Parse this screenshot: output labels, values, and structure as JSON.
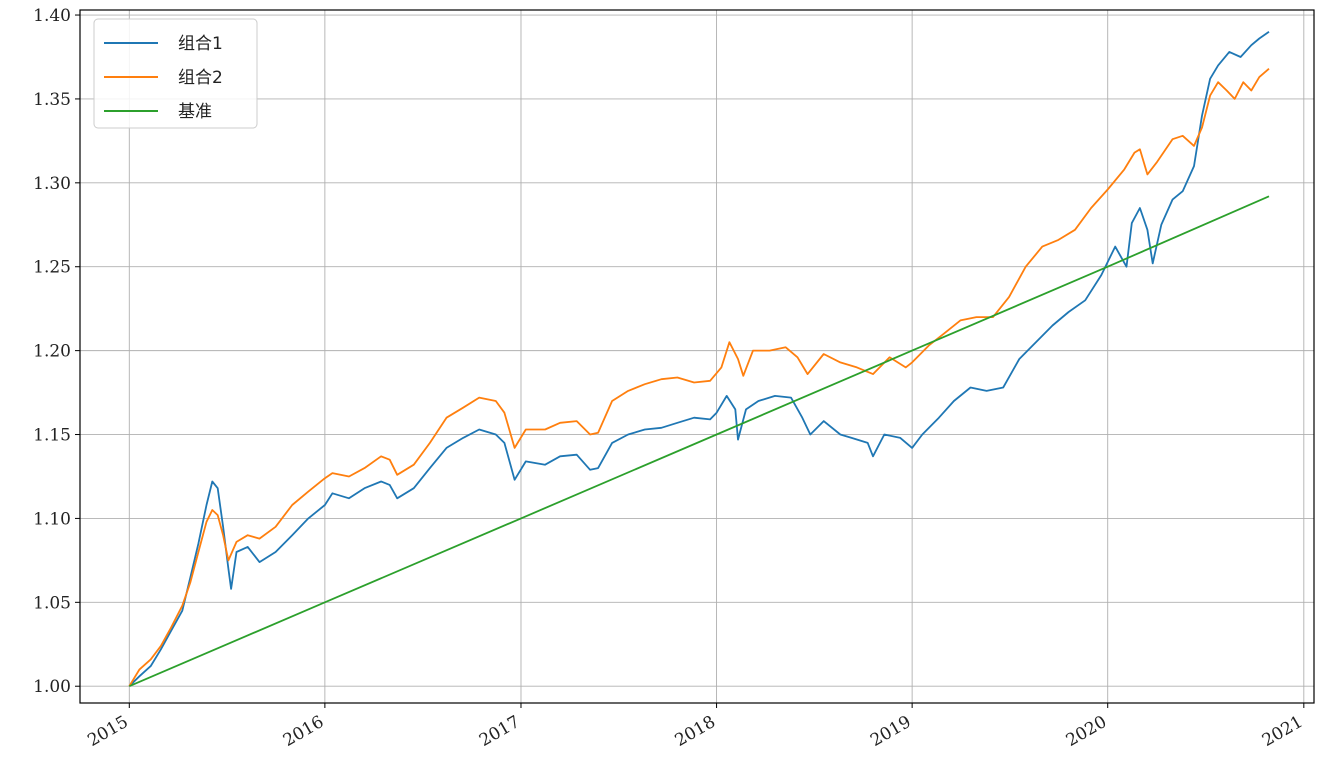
{
  "chart_data": {
    "type": "line",
    "title": "",
    "xlabel": "",
    "ylabel": "",
    "x_ticks": [
      "2015",
      "2016",
      "2017",
      "2018",
      "2019",
      "2020",
      "2021"
    ],
    "y_ticks": [
      "1.00",
      "1.05",
      "1.10",
      "1.15",
      "1.20",
      "1.25",
      "1.30",
      "1.35",
      "1.40"
    ],
    "xlim": [
      "2014-10-01",
      "2021-01-20"
    ],
    "ylim": [
      0.99,
      1.403
    ],
    "grid": true,
    "legend_position": "top-left",
    "series": [
      {
        "name": "组合1",
        "color": "#1f77b4",
        "points": [
          [
            "2015-01-01",
            1.0
          ],
          [
            "2015-01-20",
            1.006
          ],
          [
            "2015-02-10",
            1.012
          ],
          [
            "2015-03-01",
            1.022
          ],
          [
            "2015-03-20",
            1.033
          ],
          [
            "2015-04-10",
            1.045
          ],
          [
            "2015-04-25",
            1.065
          ],
          [
            "2015-05-10",
            1.085
          ],
          [
            "2015-05-25",
            1.108
          ],
          [
            "2015-06-05",
            1.122
          ],
          [
            "2015-06-15",
            1.118
          ],
          [
            "2015-06-25",
            1.095
          ],
          [
            "2015-07-05",
            1.07
          ],
          [
            "2015-07-10",
            1.058
          ],
          [
            "2015-07-20",
            1.08
          ],
          [
            "2015-08-10",
            1.083
          ],
          [
            "2015-09-01",
            1.074
          ],
          [
            "2015-10-01",
            1.08
          ],
          [
            "2015-11-01",
            1.09
          ],
          [
            "2015-12-01",
            1.1
          ],
          [
            "2016-01-01",
            1.108
          ],
          [
            "2016-01-15",
            1.115
          ],
          [
            "2016-02-15",
            1.112
          ],
          [
            "2016-03-15",
            1.118
          ],
          [
            "2016-04-15",
            1.122
          ],
          [
            "2016-05-01",
            1.12
          ],
          [
            "2016-05-15",
            1.112
          ],
          [
            "2016-06-15",
            1.118
          ],
          [
            "2016-07-15",
            1.13
          ],
          [
            "2016-08-15",
            1.142
          ],
          [
            "2016-09-15",
            1.148
          ],
          [
            "2016-10-15",
            1.153
          ],
          [
            "2016-11-15",
            1.15
          ],
          [
            "2016-12-01",
            1.145
          ],
          [
            "2016-12-20",
            1.123
          ],
          [
            "2017-01-10",
            1.134
          ],
          [
            "2017-02-15",
            1.132
          ],
          [
            "2017-03-15",
            1.137
          ],
          [
            "2017-04-15",
            1.138
          ],
          [
            "2017-05-10",
            1.129
          ],
          [
            "2017-05-25",
            1.13
          ],
          [
            "2017-06-20",
            1.145
          ],
          [
            "2017-07-20",
            1.15
          ],
          [
            "2017-08-20",
            1.153
          ],
          [
            "2017-09-20",
            1.154
          ],
          [
            "2017-10-20",
            1.157
          ],
          [
            "2017-11-20",
            1.16
          ],
          [
            "2017-12-20",
            1.159
          ],
          [
            "2018-01-01",
            1.163
          ],
          [
            "2018-01-20",
            1.173
          ],
          [
            "2018-02-05",
            1.165
          ],
          [
            "2018-02-10",
            1.147
          ],
          [
            "2018-02-25",
            1.165
          ],
          [
            "2018-03-20",
            1.17
          ],
          [
            "2018-04-20",
            1.173
          ],
          [
            "2018-05-20",
            1.172
          ],
          [
            "2018-06-10",
            1.16
          ],
          [
            "2018-06-25",
            1.15
          ],
          [
            "2018-07-20",
            1.158
          ],
          [
            "2018-08-20",
            1.15
          ],
          [
            "2018-09-10",
            1.148
          ],
          [
            "2018-10-10",
            1.145
          ],
          [
            "2018-10-20",
            1.137
          ],
          [
            "2018-11-10",
            1.15
          ],
          [
            "2018-12-10",
            1.148
          ],
          [
            "2019-01-01",
            1.142
          ],
          [
            "2019-01-20",
            1.15
          ],
          [
            "2019-02-20",
            1.16
          ],
          [
            "2019-03-20",
            1.17
          ],
          [
            "2019-04-20",
            1.178
          ],
          [
            "2019-05-20",
            1.176
          ],
          [
            "2019-06-20",
            1.178
          ],
          [
            "2019-07-20",
            1.195
          ],
          [
            "2019-08-20",
            1.205
          ],
          [
            "2019-09-20",
            1.215
          ],
          [
            "2019-10-20",
            1.223
          ],
          [
            "2019-11-20",
            1.23
          ],
          [
            "2019-12-20",
            1.245
          ],
          [
            "2020-01-15",
            1.262
          ],
          [
            "2020-02-05",
            1.25
          ],
          [
            "2020-02-15",
            1.276
          ],
          [
            "2020-03-01",
            1.285
          ],
          [
            "2020-03-15",
            1.272
          ],
          [
            "2020-03-25",
            1.252
          ],
          [
            "2020-04-10",
            1.275
          ],
          [
            "2020-05-01",
            1.29
          ],
          [
            "2020-05-20",
            1.295
          ],
          [
            "2020-06-10",
            1.31
          ],
          [
            "2020-06-25",
            1.34
          ],
          [
            "2020-07-10",
            1.362
          ],
          [
            "2020-07-25",
            1.37
          ],
          [
            "2020-08-15",
            1.378
          ],
          [
            "2020-09-05",
            1.375
          ],
          [
            "2020-09-25",
            1.382
          ],
          [
            "2020-10-10",
            1.386
          ],
          [
            "2020-10-28",
            1.39
          ]
        ]
      },
      {
        "name": "组合2",
        "color": "#ff7f0e",
        "points": [
          [
            "2015-01-01",
            1.0
          ],
          [
            "2015-01-20",
            1.01
          ],
          [
            "2015-02-10",
            1.016
          ],
          [
            "2015-03-01",
            1.024
          ],
          [
            "2015-03-20",
            1.035
          ],
          [
            "2015-04-10",
            1.048
          ],
          [
            "2015-04-25",
            1.062
          ],
          [
            "2015-05-10",
            1.08
          ],
          [
            "2015-05-25",
            1.098
          ],
          [
            "2015-06-05",
            1.105
          ],
          [
            "2015-06-15",
            1.102
          ],
          [
            "2015-06-25",
            1.09
          ],
          [
            "2015-07-05",
            1.075
          ],
          [
            "2015-07-20",
            1.086
          ],
          [
            "2015-08-10",
            1.09
          ],
          [
            "2015-09-01",
            1.088
          ],
          [
            "2015-10-01",
            1.095
          ],
          [
            "2015-11-01",
            1.108
          ],
          [
            "2015-12-01",
            1.116
          ],
          [
            "2016-01-01",
            1.124
          ],
          [
            "2016-01-15",
            1.127
          ],
          [
            "2016-02-15",
            1.125
          ],
          [
            "2016-03-15",
            1.13
          ],
          [
            "2016-04-15",
            1.137
          ],
          [
            "2016-05-01",
            1.135
          ],
          [
            "2016-05-15",
            1.126
          ],
          [
            "2016-06-15",
            1.132
          ],
          [
            "2016-07-15",
            1.145
          ],
          [
            "2016-08-15",
            1.16
          ],
          [
            "2016-09-15",
            1.166
          ],
          [
            "2016-10-15",
            1.172
          ],
          [
            "2016-11-15",
            1.17
          ],
          [
            "2016-12-01",
            1.163
          ],
          [
            "2016-12-20",
            1.142
          ],
          [
            "2017-01-10",
            1.153
          ],
          [
            "2017-02-15",
            1.153
          ],
          [
            "2017-03-15",
            1.157
          ],
          [
            "2017-04-15",
            1.158
          ],
          [
            "2017-05-10",
            1.15
          ],
          [
            "2017-05-25",
            1.151
          ],
          [
            "2017-06-20",
            1.17
          ],
          [
            "2017-07-20",
            1.176
          ],
          [
            "2017-08-20",
            1.18
          ],
          [
            "2017-09-20",
            1.183
          ],
          [
            "2017-10-20",
            1.184
          ],
          [
            "2017-11-20",
            1.181
          ],
          [
            "2017-12-20",
            1.182
          ],
          [
            "2018-01-10",
            1.19
          ],
          [
            "2018-01-25",
            1.205
          ],
          [
            "2018-02-10",
            1.195
          ],
          [
            "2018-02-20",
            1.185
          ],
          [
            "2018-03-10",
            1.2
          ],
          [
            "2018-04-10",
            1.2
          ],
          [
            "2018-05-10",
            1.202
          ],
          [
            "2018-06-01",
            1.196
          ],
          [
            "2018-06-20",
            1.186
          ],
          [
            "2018-07-20",
            1.198
          ],
          [
            "2018-08-20",
            1.193
          ],
          [
            "2018-09-20",
            1.19
          ],
          [
            "2018-10-20",
            1.186
          ],
          [
            "2018-11-20",
            1.196
          ],
          [
            "2018-12-20",
            1.19
          ],
          [
            "2019-01-01",
            1.193
          ],
          [
            "2019-02-01",
            1.203
          ],
          [
            "2019-03-01",
            1.21
          ],
          [
            "2019-04-01",
            1.218
          ],
          [
            "2019-05-01",
            1.22
          ],
          [
            "2019-06-01",
            1.22
          ],
          [
            "2019-07-01",
            1.232
          ],
          [
            "2019-08-01",
            1.25
          ],
          [
            "2019-09-01",
            1.262
          ],
          [
            "2019-10-01",
            1.266
          ],
          [
            "2019-11-01",
            1.272
          ],
          [
            "2019-12-01",
            1.285
          ],
          [
            "2020-01-01",
            1.296
          ],
          [
            "2020-02-01",
            1.308
          ],
          [
            "2020-02-20",
            1.318
          ],
          [
            "2020-03-01",
            1.32
          ],
          [
            "2020-03-15",
            1.305
          ],
          [
            "2020-04-01",
            1.312
          ],
          [
            "2020-05-01",
            1.326
          ],
          [
            "2020-05-20",
            1.328
          ],
          [
            "2020-06-10",
            1.322
          ],
          [
            "2020-06-25",
            1.333
          ],
          [
            "2020-07-10",
            1.352
          ],
          [
            "2020-07-25",
            1.36
          ],
          [
            "2020-08-10",
            1.355
          ],
          [
            "2020-08-25",
            1.35
          ],
          [
            "2020-09-10",
            1.36
          ],
          [
            "2020-09-25",
            1.355
          ],
          [
            "2020-10-10",
            1.363
          ],
          [
            "2020-10-28",
            1.368
          ]
        ]
      },
      {
        "name": "基准",
        "color": "#2ca02c",
        "points": [
          [
            "2015-01-01",
            1.0
          ],
          [
            "2016-01-01",
            1.05
          ],
          [
            "2017-01-01",
            1.1
          ],
          [
            "2018-01-01",
            1.15
          ],
          [
            "2019-01-01",
            1.2
          ],
          [
            "2020-01-01",
            1.25
          ],
          [
            "2020-10-28",
            1.292
          ]
        ]
      }
    ]
  }
}
